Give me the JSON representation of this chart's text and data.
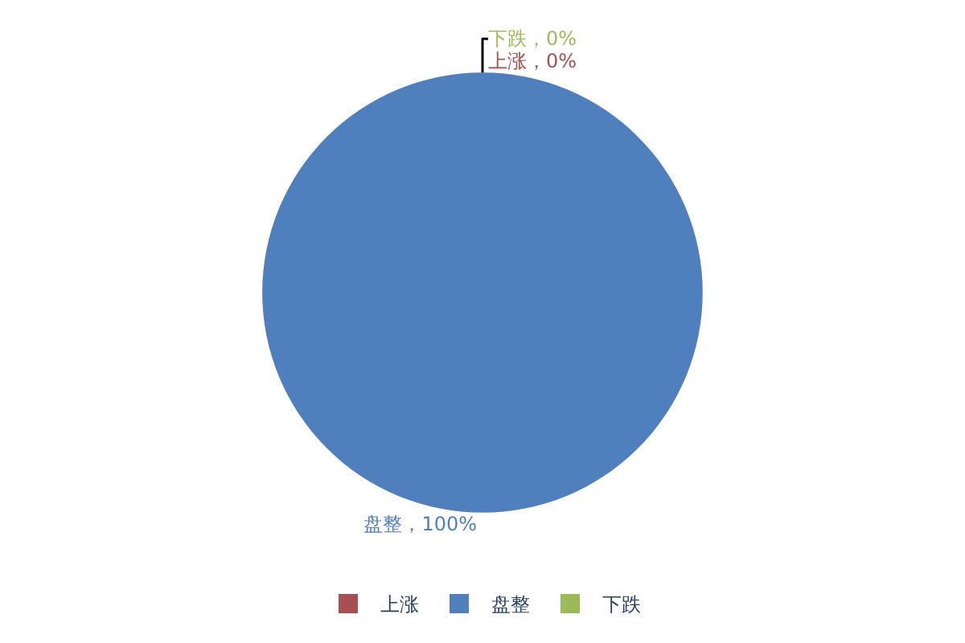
{
  "chart_data": {
    "type": "pie",
    "categories": [
      "上涨",
      "盘整",
      "下跌"
    ],
    "values": [
      0,
      100,
      0
    ],
    "colors": [
      "#a94f54",
      "#4f7fbc",
      "#9bbb59"
    ],
    "value_labels": [
      "上涨，0%",
      "盘整，100%",
      "下跌，0%"
    ],
    "legend": "bottom"
  }
}
